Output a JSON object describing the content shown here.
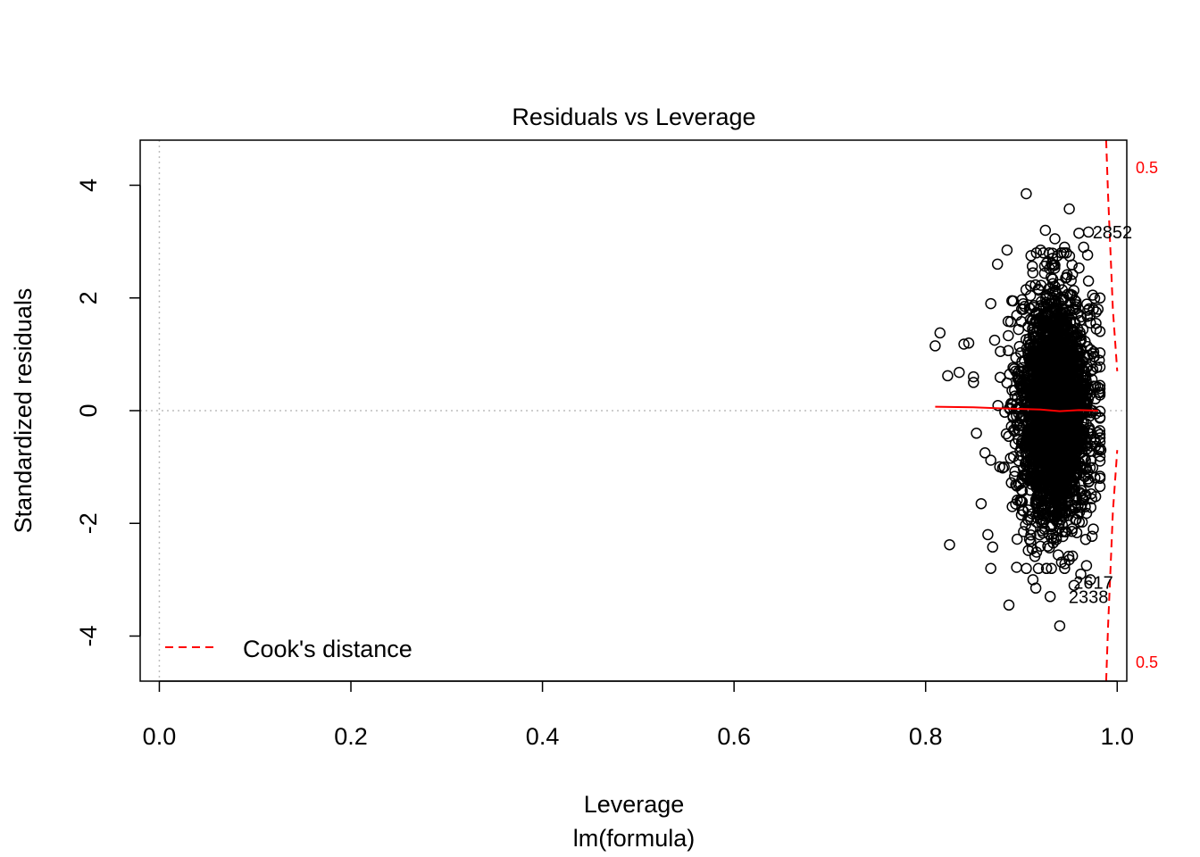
{
  "chart_data": {
    "type": "scatter",
    "title": "Residuals vs Leverage",
    "xlabel": "Leverage",
    "sublabel": "lm(formula)",
    "ylabel": "Standardized residuals",
    "xlim": [
      -0.02,
      1.01
    ],
    "ylim": [
      -4.8,
      4.8
    ],
    "x_ticks": [
      0.0,
      0.2,
      0.4,
      0.6,
      0.8,
      1.0
    ],
    "x_tick_labels": [
      "0.0",
      "0.2",
      "0.4",
      "0.6",
      "0.8",
      "1.0"
    ],
    "y_ticks": [
      -4,
      -2,
      0,
      2,
      4
    ],
    "y_tick_labels": [
      "-4",
      "-2",
      "0",
      "2",
      "4"
    ],
    "reference_lines": {
      "h": 0,
      "v": 0,
      "style": "dotted",
      "color": "#bebebe"
    },
    "legend": {
      "position": "bottom-left",
      "entries": [
        {
          "label": "Cook's distance",
          "style": "dashed",
          "color": "#ff0000"
        }
      ]
    },
    "cook_contour_labels": [
      "0.5",
      "0.5"
    ],
    "cook_contour_upper": {
      "x": [
        0.9885,
        0.9905,
        0.993,
        0.9955,
        0.998,
        1.0
      ],
      "y": [
        4.8,
        3.8,
        2.8,
        1.8,
        1.2,
        0.7
      ]
    },
    "cook_contour_lower": {
      "x": [
        0.9885,
        0.9905,
        0.993,
        0.9955,
        0.998,
        1.0
      ],
      "y": [
        -4.8,
        -3.8,
        -2.8,
        -1.8,
        -1.2,
        -0.7
      ]
    },
    "smooth_line": {
      "x": [
        0.81,
        0.85,
        0.88,
        0.9,
        0.92,
        0.94,
        0.96,
        0.98
      ],
      "y": [
        0.07,
        0.06,
        0.04,
        0.03,
        0.02,
        -0.01,
        0.01,
        0.0
      ]
    },
    "labeled_points": [
      {
        "label": "2852",
        "x": 0.965,
        "y": 3.17
      },
      {
        "label": "2617",
        "x": 0.945,
        "y": -3.05
      },
      {
        "label": "2338",
        "x": 0.94,
        "y": -3.3
      }
    ],
    "points": [
      [
        0.81,
        1.15
      ],
      [
        0.815,
        1.38
      ],
      [
        0.823,
        0.62
      ],
      [
        0.825,
        -2.38
      ],
      [
        0.835,
        0.68
      ],
      [
        0.84,
        1.18
      ],
      [
        0.845,
        1.2
      ],
      [
        0.85,
        0.6
      ],
      [
        0.85,
        0.5
      ],
      [
        0.853,
        -0.4
      ],
      [
        0.858,
        -1.65
      ],
      [
        0.862,
        -0.75
      ],
      [
        0.865,
        -2.2
      ],
      [
        0.868,
        1.9
      ],
      [
        0.87,
        -2.42
      ],
      [
        0.872,
        1.25
      ],
      [
        0.875,
        2.6
      ],
      [
        0.878,
        1.05
      ],
      [
        0.882,
        -1.0
      ],
      [
        0.885,
        2.85
      ],
      [
        0.887,
        -3.45
      ],
      [
        0.89,
        1.95
      ],
      [
        0.895,
        -2.78
      ],
      [
        0.9,
        -1.85
      ],
      [
        0.905,
        3.85
      ],
      [
        0.91,
        2.75
      ],
      [
        0.912,
        -3.0
      ],
      [
        0.915,
        -3.15
      ],
      [
        0.92,
        2.85
      ],
      [
        0.925,
        3.2
      ],
      [
        0.93,
        -3.3
      ],
      [
        0.935,
        3.05
      ],
      [
        0.94,
        -3.82
      ],
      [
        0.945,
        2.9
      ],
      [
        0.95,
        3.58
      ],
      [
        0.955,
        -3.1
      ],
      [
        0.96,
        3.15
      ],
      [
        0.962,
        -2.9
      ],
      [
        0.965,
        2.9
      ],
      [
        0.968,
        -2.75
      ],
      [
        0.97,
        3.17
      ],
      [
        0.972,
        -3.0
      ],
      [
        0.97,
        2.3
      ],
      [
        0.975,
        1.8
      ],
      [
        0.975,
        -2.1
      ],
      [
        0.978,
        1.75
      ],
      [
        0.98,
        1.8
      ],
      [
        0.982,
        2.0
      ],
      [
        0.983,
        -0.7
      ],
      [
        0.982,
        -1.2
      ]
    ],
    "cluster": {
      "n": 2900,
      "x_mean": 0.935,
      "x_sd": 0.018,
      "x_range": [
        0.868,
        0.982
      ],
      "y_sd": 1.0,
      "y_range": [
        -2.8,
        2.8
      ]
    }
  }
}
